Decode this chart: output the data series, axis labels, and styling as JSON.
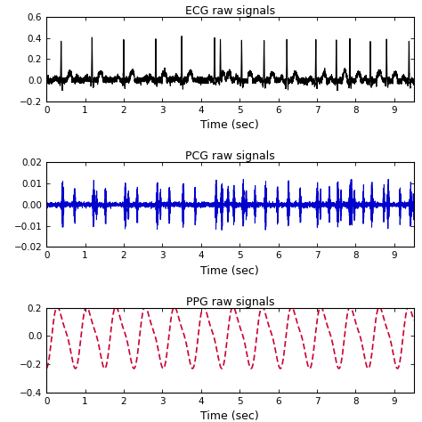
{
  "ecg_title": "ECG raw signals",
  "pcg_title": "PCG raw signals",
  "ppg_title": "PPG raw signals",
  "xlabel": "Time (sec)",
  "ecg_ylim": [
    -0.2,
    0.6
  ],
  "ecg_yticks": [
    -0.2,
    0,
    0.2,
    0.4,
    0.6
  ],
  "pcg_ylim": [
    -0.02,
    0.02
  ],
  "pcg_yticks": [
    -0.02,
    -0.01,
    0,
    0.01,
    0.02
  ],
  "ppg_ylim": [
    -0.4,
    0.2
  ],
  "ppg_yticks": [
    -0.4,
    -0.2,
    0,
    0.2
  ],
  "xlim": [
    0,
    9.5
  ],
  "xticks": [
    0,
    1,
    2,
    3,
    4,
    5,
    6,
    7,
    8,
    9
  ],
  "ecg_color": "black",
  "pcg_color": "#0000cc",
  "ppg_color": "#cc0033",
  "bg_color": "white",
  "fs": 500,
  "duration": 9.5,
  "ecg_r_peaks": [
    0.38,
    1.18,
    2.0,
    2.83,
    3.5,
    4.35,
    4.5,
    5.05,
    5.63,
    6.22,
    6.97,
    7.5,
    7.85,
    8.38,
    8.8,
    9.38
  ],
  "ppg_freq": 1.32,
  "ppg_amp": 0.2,
  "ppg_amp2": 0.05,
  "ppg_phase": 1.2,
  "title_fontsize": 9,
  "tick_fontsize": 7.5,
  "label_fontsize": 9,
  "linewidth_ecg": 0.8,
  "linewidth_pcg": 0.7,
  "linewidth_ppg": 1.2
}
